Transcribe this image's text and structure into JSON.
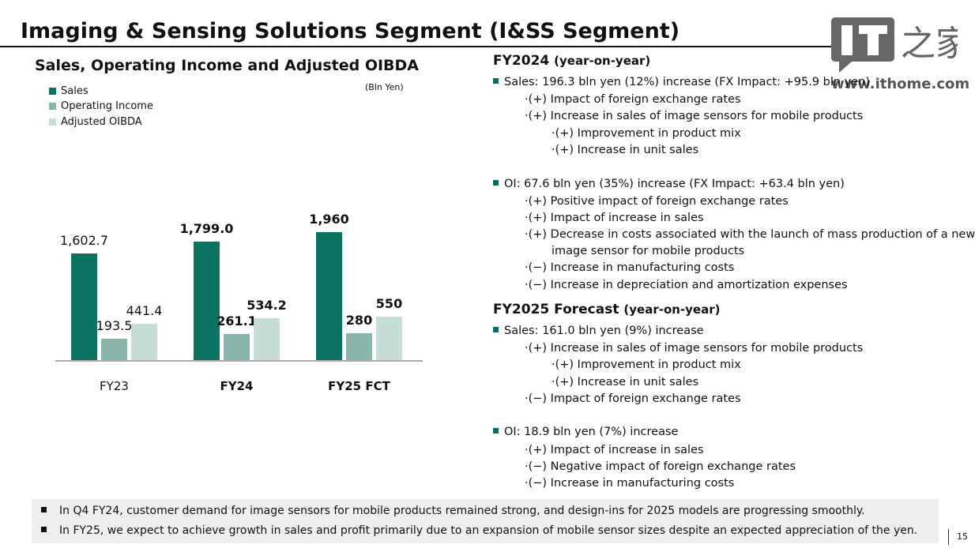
{
  "title": "Imaging & Sensing Solutions Segment (I&SS Segment)",
  "page_number": "15",
  "watermark": {
    "brand": "IT之家",
    "url": "www.ithome.com"
  },
  "chart_data": {
    "type": "bar",
    "title": "Sales, Operating Income and Adjusted OIBDA",
    "unit": "(Bln Yen)",
    "categories": [
      "FY23",
      "FY24",
      "FY25 FCT"
    ],
    "series": [
      {
        "name": "Sales",
        "color": "#0b7360",
        "values": [
          1602.7,
          1799.0,
          1960
        ],
        "labels": [
          "1,602.7",
          "1,799.0",
          "1,960"
        ]
      },
      {
        "name": "Operating Income",
        "color": "#8ab5ad",
        "values": [
          193.5,
          261.1,
          280
        ],
        "labels": [
          "193.5",
          "261.1",
          "280"
        ]
      },
      {
        "name": "Adjusted OIBDA",
        "color": "#c6ddd8",
        "values": [
          441.4,
          534.2,
          550
        ],
        "labels": [
          "441.4",
          "534.2",
          "550"
        ]
      }
    ],
    "legend": "top-left",
    "grid": false
  },
  "fy2024": {
    "heading": "FY2024",
    "sub": "(year-on-year)",
    "sales": "Sales: 196.3 bln yen (12%) increase (FX Impact: +95.9 bln yen)",
    "sales_items": [
      "·(+) Impact of foreign exchange rates",
      "·(+) Increase in sales of image sensors for mobile products"
    ],
    "sales_sub": [
      "·(+) Improvement in product mix",
      "·(+) Increase in unit sales"
    ],
    "oi": "OI: 67.6 bln yen (35%) increase (FX Impact: +63.4 bln yen)",
    "oi_items": [
      "·(+) Positive impact of foreign exchange rates",
      "·(+) Impact of increase in sales",
      "·(+) Decrease in costs associated with the launch of mass production of a new",
      "·(−) Increase in manufacturing costs",
      "·(−) Increase in depreciation and amortization expenses"
    ],
    "oi_cont": "image sensor for mobile products"
  },
  "fy2025": {
    "heading": "FY2025 Forecast",
    "sub": "(year-on-year)",
    "sales": "Sales: 161.0 bln yen (9%) increase",
    "sales_items": [
      "·(+) Increase in sales of image sensors for mobile products",
      "·(−) Impact of foreign exchange rates"
    ],
    "sales_sub": [
      "·(+) Improvement in product mix",
      "·(+) Increase in unit sales"
    ],
    "oi": "OI: 18.9 bln yen (7%) increase",
    "oi_items": [
      "·(+) Impact of increase in sales",
      "·(−) Negative impact of foreign exchange rates",
      "·(−) Increase in manufacturing costs"
    ]
  },
  "notes": [
    "In Q4 FY24, customer demand for image sensors for mobile products remained strong, and design-ins for 2025 models are progressing smoothly.",
    "In FY25, we expect to achieve growth in sales and profit primarily due to an expansion of mobile sensor sizes despite an expected appreciation of the yen."
  ]
}
